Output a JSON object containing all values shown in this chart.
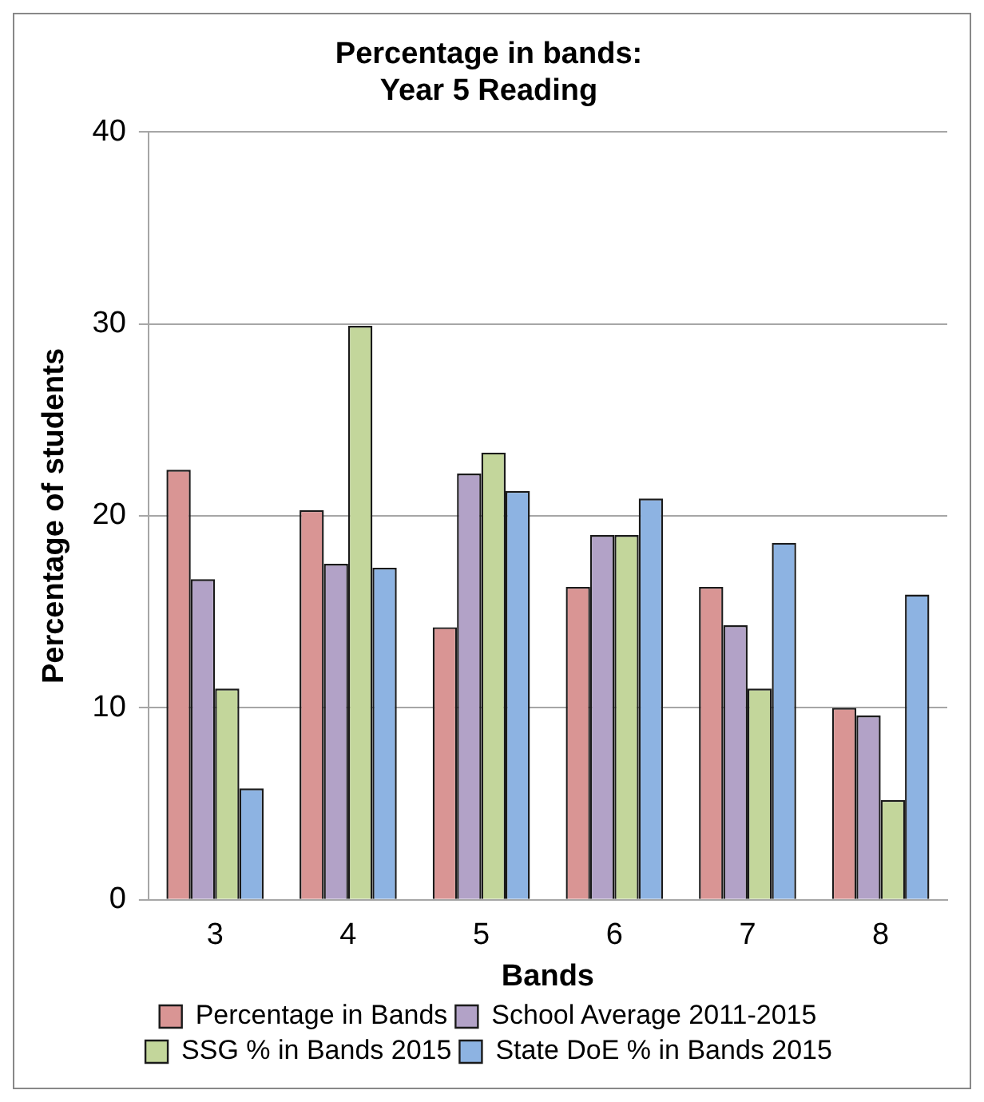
{
  "chart_data": {
    "type": "bar",
    "title": "Percentage in bands:\nYear 5 Reading",
    "xlabel": "Bands",
    "ylabel": "Percentage of students",
    "categories": [
      "3",
      "4",
      "5",
      "6",
      "7",
      "8"
    ],
    "series": [
      {
        "name": "Percentage in Bands",
        "color": "#d99594",
        "values": [
          22.4,
          20.3,
          14.2,
          16.3,
          16.3,
          10.0
        ]
      },
      {
        "name": "School Average 2011-2015",
        "color": "#b2a2c7",
        "values": [
          16.7,
          17.5,
          22.2,
          19.0,
          14.3,
          9.6
        ]
      },
      {
        "name": "SSG % in Bands 2015",
        "color": "#c3d69b",
        "values": [
          11.0,
          29.9,
          23.3,
          19.0,
          11.0,
          5.2
        ]
      },
      {
        "name": "State DoE % in Bands 2015",
        "color": "#8db3e2",
        "values": [
          5.8,
          17.3,
          21.3,
          20.9,
          18.6,
          15.9
        ]
      }
    ],
    "ylim": [
      0,
      40
    ],
    "yticks": [
      0,
      10,
      20,
      30,
      40
    ],
    "grid": "y",
    "legend": "bottom"
  }
}
